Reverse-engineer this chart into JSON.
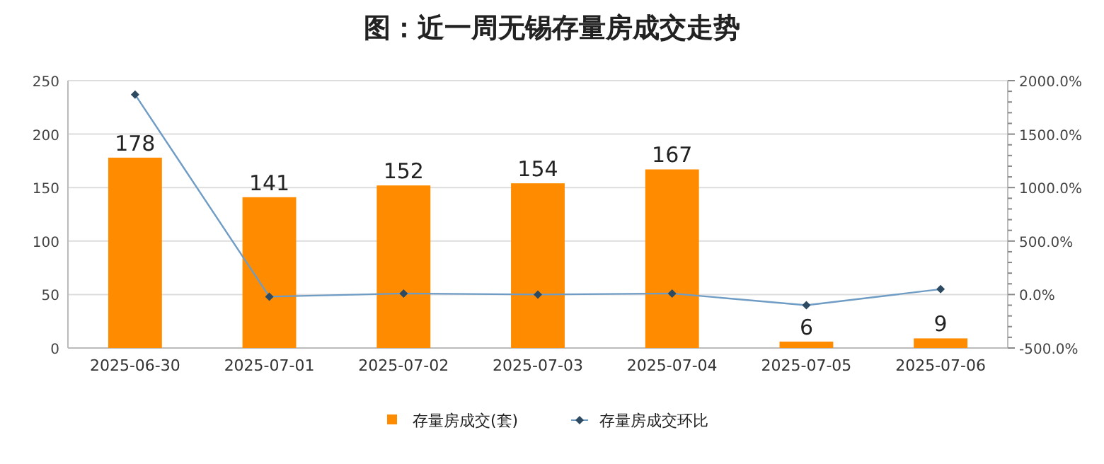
{
  "chart_data": {
    "type": "bar",
    "title": "图：近一周无锡存量房成交走势",
    "categories": [
      "2025-06-30",
      "2025-07-01",
      "2025-07-02",
      "2025-07-03",
      "2025-07-04",
      "2025-07-05",
      "2025-07-06"
    ],
    "series": [
      {
        "name": "存量房成交(套)",
        "color": "#ff8c00",
        "values": [
          178,
          141,
          152,
          154,
          167,
          6,
          9
        ],
        "value_labels": [
          "178",
          "141",
          "152",
          "154",
          "167",
          "6",
          "9"
        ]
      },
      {
        "name": "存量房成交环比",
        "type": "line",
        "axis": "y2",
        "color": "#6f9cc4",
        "marker": "diamond",
        "values": [
          1870,
          -20,
          10,
          0,
          10,
          -100,
          50
        ]
      }
    ],
    "ylim": [
      0,
      250
    ],
    "yticks": [
      0,
      50,
      100,
      150,
      200,
      250
    ],
    "y2lim": [
      -500,
      2000
    ],
    "y2ticks": [
      {
        "value": -500,
        "label": "-500.0%"
      },
      {
        "value": 0,
        "label": "0.0%"
      },
      {
        "value": 500,
        "label": "500.0%"
      },
      {
        "value": 1000,
        "label": "1000.0%"
      },
      {
        "value": 1500,
        "label": "1500.0%"
      },
      {
        "value": 2000,
        "label": "2000.0%"
      }
    ],
    "grid": "y",
    "legend": "bottom"
  }
}
